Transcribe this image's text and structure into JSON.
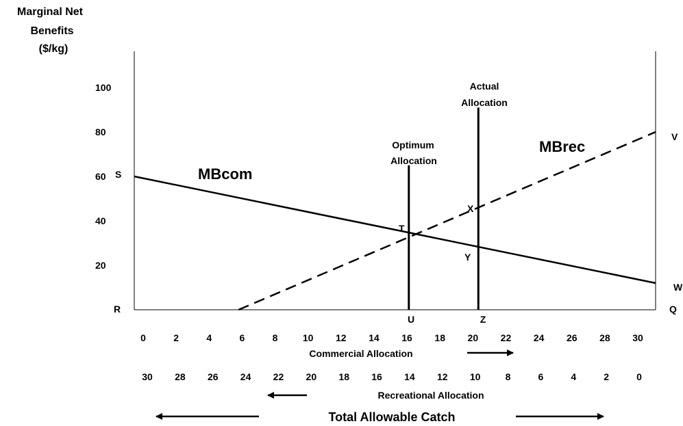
{
  "chart_data": {
    "type": "line",
    "ylabel": [
      "Marginal Net",
      "Benefits",
      "($/kg)"
    ],
    "y_ticks": [
      20,
      40,
      60,
      80,
      100
    ],
    "x_commercial_ticks": [
      0,
      2,
      4,
      6,
      8,
      10,
      12,
      14,
      16,
      18,
      20,
      22,
      24,
      26,
      28,
      30
    ],
    "x_recreational_ticks": [
      30,
      28,
      26,
      24,
      22,
      20,
      18,
      16,
      14,
      12,
      10,
      8,
      6,
      4,
      2,
      0
    ],
    "xlim": [
      0,
      30
    ],
    "ylim": [
      0,
      120
    ],
    "commercial_axis_label": "Commercial Allocation",
    "recreational_axis_label": "Recreational Allocation",
    "total_label": "Total Allowable Catch",
    "series": [
      {
        "name": "MBcom",
        "style": "solid",
        "x": [
          0,
          30
        ],
        "y": [
          60,
          12
        ]
      },
      {
        "name": "MBrec",
        "style": "dashed",
        "x": [
          6,
          30
        ],
        "y": [
          0,
          80
        ]
      }
    ],
    "vlines": [
      {
        "label": [
          "Optimum",
          "Allocation"
        ],
        "x": 15.8,
        "y_top": 65,
        "base_label": "U",
        "pt_label": "T"
      },
      {
        "label": [
          "Actual",
          "Allocation"
        ],
        "x": 19.8,
        "y_top": 91,
        "base_label": "Z",
        "pt_label": "X"
      }
    ],
    "point_labels": {
      "R": "R",
      "S": "S",
      "V": "V",
      "W": "W",
      "Q": "Q",
      "Y": "Y"
    },
    "colors": {
      "ink": "#000000",
      "background": "#ffffff"
    }
  }
}
